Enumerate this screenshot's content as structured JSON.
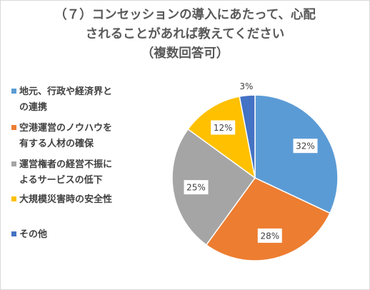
{
  "chart_data": {
    "type": "pie",
    "title_lines": [
      "（７）コンセッションの導入にあたって、心配",
      "されることがあれば教えてください",
      "（複数回答可）"
    ],
    "slices": [
      {
        "label": "地元、行政や経済界との連携",
        "legend_lines": [
          "地元、行政や経済界と",
          "の連携"
        ],
        "value": 32,
        "display": "32%",
        "color": "#5B9BD5"
      },
      {
        "label": "空港運営のノウハウを有する人材の確保",
        "legend_lines": [
          "空港運営のノウハウを",
          "有する人材の確保"
        ],
        "value": 28,
        "display": "28%",
        "color": "#ED7D31"
      },
      {
        "label": "運営権者の経営不振によるサービスの低下",
        "legend_lines": [
          "運営権者の経営不振に",
          "よるサービスの低下"
        ],
        "value": 25,
        "display": "25%",
        "color": "#A5A5A5"
      },
      {
        "label": "大規模災害時の安全性",
        "legend_lines": [
          "大規模災害時の安全性"
        ],
        "value": 12,
        "display": "12%",
        "color": "#FFC000"
      },
      {
        "label": "その他",
        "legend_lines": [
          "その他"
        ],
        "value": 3,
        "display": "3%",
        "color": "#4472C4"
      }
    ],
    "legend_position": "left"
  }
}
